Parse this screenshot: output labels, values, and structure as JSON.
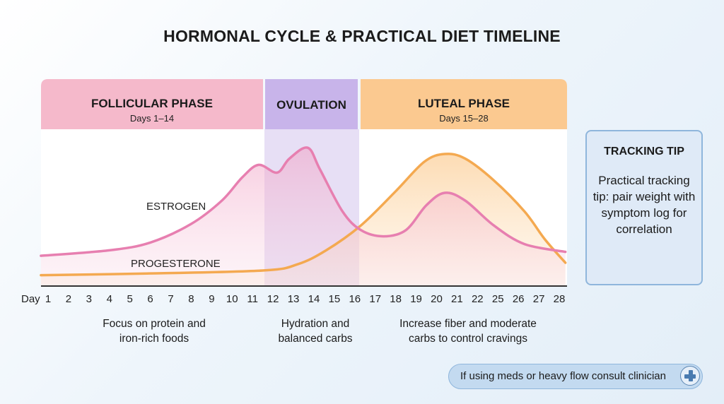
{
  "title": "HORMONAL CYCLE & PRACTICAL DIET TIMELINE",
  "phases": [
    {
      "name": "FOLLICULAR PHASE",
      "days": "Days 1–14",
      "color": "#f5b9cb"
    },
    {
      "name": "OVULATION",
      "days": "",
      "color": "#c8b4ea"
    },
    {
      "name": "LUTEAL PHASE",
      "days": "Days 15–28",
      "color": "#fbc990"
    }
  ],
  "diet_tips": [
    {
      "line1": "Focus on protein and",
      "line2": "iron-rich foods"
    },
    {
      "line1": "Hydration and",
      "line2": "balanced carbs"
    },
    {
      "line1": "Increase fiber and moderate",
      "line2": "carbs to control cravings"
    }
  ],
  "tracking_tip": {
    "title": "TRACKING TIP",
    "body": "Practical tracking tip: pair weight with symptom log for correlation"
  },
  "note": {
    "text": "If using meds or heavy flow consult clinician",
    "icon": "medical-cross-icon"
  },
  "chart_data": {
    "type": "line",
    "title": "HORMONAL CYCLE & PRACTICAL DIET TIMELINE",
    "xlabel": "Day",
    "x_ticks": [
      "1",
      "2",
      "3",
      "4",
      "5",
      "6",
      "7",
      "8",
      "9",
      "10",
      "11",
      "12",
      "13",
      "14",
      "15",
      "16",
      "17",
      "18",
      "19",
      "20",
      "21",
      "22",
      "25",
      "26",
      "27",
      "28"
    ],
    "ylim": [
      0,
      100
    ],
    "grid": false,
    "series": [
      {
        "name": "ESTROGEN",
        "color": "#e77fb0",
        "points": [
          [
            -0.35,
            19.5
          ],
          [
            3,
            23
          ],
          [
            5,
            28
          ],
          [
            7,
            40
          ],
          [
            8.5,
            55
          ],
          [
            9.5,
            70
          ],
          [
            10.3,
            78
          ],
          [
            11.2,
            73
          ],
          [
            11.8,
            82
          ],
          [
            12.7,
            89
          ],
          [
            13.3,
            75
          ],
          [
            14.4,
            48
          ],
          [
            15.3,
            36
          ],
          [
            16.4,
            32
          ],
          [
            17.5,
            36
          ],
          [
            18.5,
            52
          ],
          [
            19.4,
            60
          ],
          [
            20.4,
            55
          ],
          [
            21.8,
            39
          ],
          [
            23.3,
            27
          ],
          [
            25.3,
            22
          ]
        ]
      },
      {
        "name": "PROGESTERONE",
        "color": "#f4a950",
        "points": [
          [
            -0.35,
            7
          ],
          [
            4.6,
            8
          ],
          [
            10.5,
            10
          ],
          [
            12.2,
            14
          ],
          [
            13.6,
            23
          ],
          [
            15.3,
            39
          ],
          [
            17,
            61
          ],
          [
            18.4,
            80
          ],
          [
            19.4,
            85
          ],
          [
            20.4,
            82
          ],
          [
            21.8,
            68
          ],
          [
            23.3,
            48
          ],
          [
            24.3,
            30
          ],
          [
            25.3,
            15
          ]
        ]
      }
    ]
  }
}
